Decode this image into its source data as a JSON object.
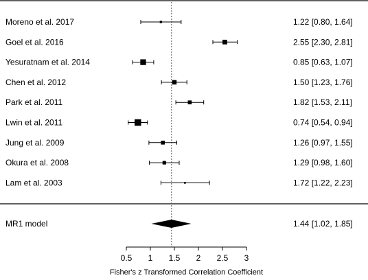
{
  "chart_data": {
    "type": "forest",
    "studies": [
      {
        "label": "Moreno et al. 2017",
        "estimate": 1.22,
        "lower": 0.8,
        "upper": 1.64,
        "ci_text": "1.22 [0.80, 1.64]"
      },
      {
        "label": "Goel et al. 2016",
        "estimate": 2.55,
        "lower": 2.3,
        "upper": 2.81,
        "ci_text": "2.55 [2.30, 2.81]"
      },
      {
        "label": "Yesuratnam et al. 2014",
        "estimate": 0.85,
        "lower": 0.63,
        "upper": 1.07,
        "ci_text": "0.85 [0.63, 1.07]"
      },
      {
        "label": "Chen et al. 2012",
        "estimate": 1.5,
        "lower": 1.23,
        "upper": 1.76,
        "ci_text": "1.50 [1.23, 1.76]"
      },
      {
        "label": "Park et al. 2011",
        "estimate": 1.82,
        "lower": 1.53,
        "upper": 2.11,
        "ci_text": "1.82 [1.53, 2.11]"
      },
      {
        "label": "Lwin et al. 2011",
        "estimate": 0.74,
        "lower": 0.54,
        "upper": 0.94,
        "ci_text": "0.74 [0.54, 0.94]"
      },
      {
        "label": "Jung et al. 2009",
        "estimate": 1.26,
        "lower": 0.97,
        "upper": 1.55,
        "ci_text": "1.26 [0.97, 1.55]"
      },
      {
        "label": "Okura et al. 2008",
        "estimate": 1.29,
        "lower": 0.98,
        "upper": 1.6,
        "ci_text": "1.29 [0.98, 1.60]"
      },
      {
        "label": "Lam et al. 2003",
        "estimate": 1.72,
        "lower": 1.22,
        "upper": 2.23,
        "ci_text": "1.72 [1.22, 2.23]"
      }
    ],
    "summary": {
      "label": "MR1 model",
      "estimate": 1.44,
      "lower": 1.02,
      "upper": 1.85,
      "ci_text": "1.44 [1.02, 1.85]"
    },
    "x_ticks": [
      0.5,
      1,
      1.5,
      2,
      2.5,
      3
    ],
    "x_tick_labels": [
      "0.5",
      "1",
      "1.5",
      "2",
      "2.5",
      "3"
    ],
    "xlim": [
      0.5,
      3
    ],
    "xlabel": "Fisher's z Transformed Correlation Coefficient",
    "reference_line": 1.44,
    "grid": false
  }
}
